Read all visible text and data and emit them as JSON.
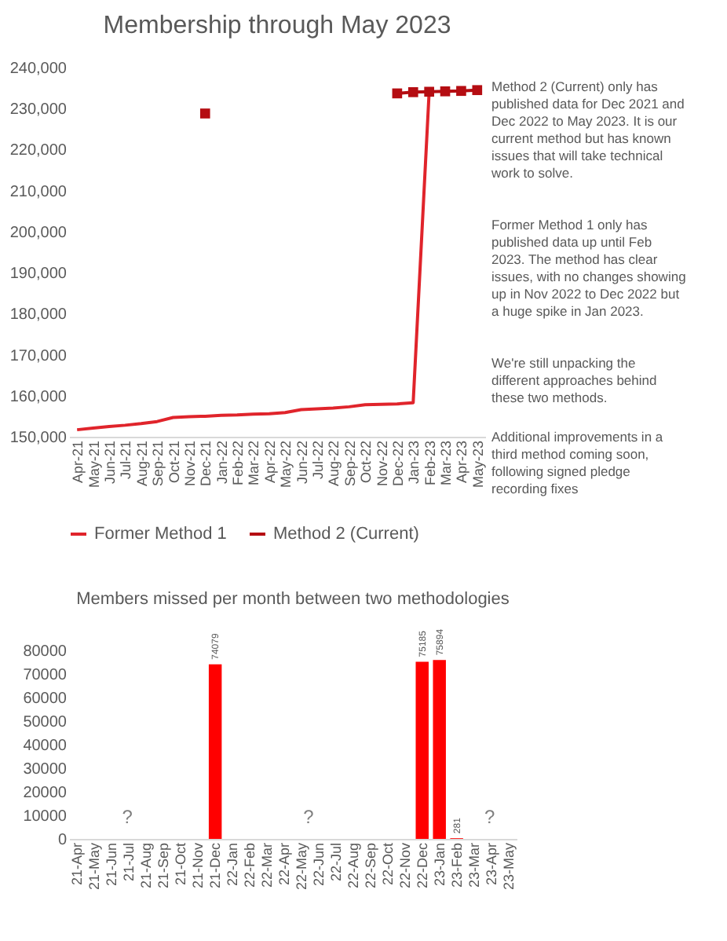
{
  "chart_data": [
    {
      "type": "line",
      "title": "Membership through May 2023",
      "categories": [
        "Apr-21",
        "May-21",
        "Jun-21",
        "Jul-21",
        "Aug-21",
        "Sep-21",
        "Oct-21",
        "Nov-21",
        "Dec-21",
        "Jan-22",
        "Feb-22",
        "Mar-22",
        "Apr-22",
        "May-22",
        "Jun-22",
        "Jul-22",
        "Aug-22",
        "Sep-22",
        "Oct-22",
        "Nov-22",
        "Dec-22",
        "Jan-23",
        "Feb-23",
        "Mar-23",
        "Apr-23",
        "May-23"
      ],
      "series": [
        {
          "name": "Former Method 1",
          "color": "#e0242b",
          "marker": "none",
          "values": [
            151700,
            152100,
            152500,
            152800,
            153200,
            153700,
            154700,
            154900,
            155000,
            155200,
            155300,
            155500,
            155600,
            155900,
            156600,
            156800,
            157000,
            157300,
            157800,
            157900,
            158000,
            158300,
            234200,
            null,
            null,
            null
          ]
        },
        {
          "name": "Method 2 (Current)",
          "color": "#b50d12",
          "marker": "square",
          "values": [
            null,
            null,
            null,
            null,
            null,
            null,
            null,
            null,
            228800,
            null,
            null,
            null,
            null,
            null,
            null,
            null,
            null,
            null,
            null,
            null,
            233700,
            234000,
            234100,
            234200,
            234300,
            234500
          ]
        }
      ],
      "ylim": [
        150000,
        240000
      ],
      "yticks": [
        {
          "value": 150000,
          "label": "150,000"
        },
        {
          "value": 160000,
          "label": "160,000"
        },
        {
          "value": 170000,
          "label": "170,000"
        },
        {
          "value": 180000,
          "label": "180,000"
        },
        {
          "value": 190000,
          "label": "190,000"
        },
        {
          "value": 200000,
          "label": "200,000"
        },
        {
          "value": 210000,
          "label": "210,000"
        },
        {
          "value": 220000,
          "label": "220,000"
        },
        {
          "value": 230000,
          "label": "230,000"
        },
        {
          "value": 240000,
          "label": "240,000"
        }
      ],
      "grid": false,
      "legend": "bottom",
      "annotations": [
        "Method 2 (Current) only has published data for Dec 2021 and Dec 2022 to May 2023. It is our current method but has known issues that will take technical work to solve.",
        "Former Method 1 only has published data up until Feb 2023. The method has clear issues, with no changes showing up in Nov 2022 to Dec 2022 but a huge spike in Jan 2023.",
        "We're still unpacking the different approaches behind these two methods.",
        "Additional improvements in a third method coming soon, following signed pledge recording fixes"
      ]
    },
    {
      "type": "bar",
      "title": "Members missed per month between two methodologies",
      "categories": [
        "21-Apr",
        "21-May",
        "21-Jun",
        "21-Jul",
        "21-Aug",
        "21-Sep",
        "21-Oct",
        "21-Nov",
        "21-Dec",
        "22-Jan",
        "22-Feb",
        "22-Mar",
        "22-Apr",
        "22-May",
        "22-Jun",
        "22-Jul",
        "22-Aug",
        "22-Sep",
        "22-Oct",
        "22-Nov",
        "22-Dec",
        "23-Jan",
        "23-Feb",
        "23-Mar",
        "23-Apr",
        "23-May"
      ],
      "values": [
        null,
        null,
        null,
        null,
        null,
        null,
        null,
        null,
        74079,
        null,
        null,
        null,
        null,
        null,
        null,
        null,
        null,
        null,
        null,
        null,
        75185,
        75894,
        281,
        null,
        null,
        null
      ],
      "color": "#ff0000",
      "data_labels": true,
      "ylim": [
        0,
        80000
      ],
      "yticks": [
        0,
        10000,
        20000,
        30000,
        40000,
        50000,
        60000,
        70000,
        80000
      ],
      "grid": false,
      "annotations": [
        "?",
        "?",
        "?"
      ]
    }
  ]
}
